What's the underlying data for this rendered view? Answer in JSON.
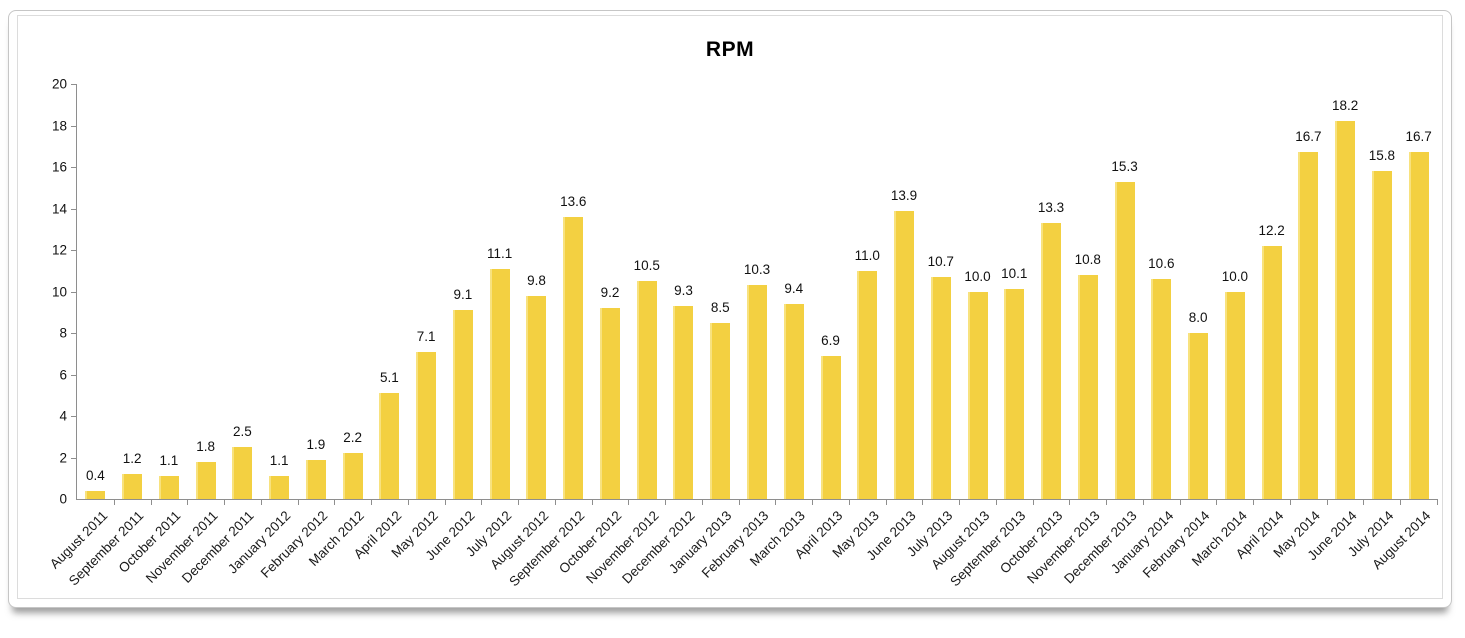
{
  "chart_data": {
    "type": "bar",
    "title": "RPM",
    "categories": [
      "August 2011",
      "September 2011",
      "October 2011",
      "November 2011",
      "December 2011",
      "January 2012",
      "February 2012",
      "March 2012",
      "April 2012",
      "May 2012",
      "June 2012",
      "July 2012",
      "August 2012",
      "September 2012",
      "October 2012",
      "November 2012",
      "December 2012",
      "January 2013",
      "February 2013",
      "March 2013",
      "April 2013",
      "May 2013",
      "June 2013",
      "July 2013",
      "August 2013",
      "September 2013",
      "October 2013",
      "November 2013",
      "December 2013",
      "January 2014",
      "February 2014",
      "March 2014",
      "April 2014",
      "May 2014",
      "June 2014",
      "July 2014",
      "August 2014"
    ],
    "values": [
      0.4,
      1.2,
      1.1,
      1.8,
      2.5,
      1.1,
      1.9,
      2.2,
      5.1,
      7.1,
      9.1,
      11.1,
      9.8,
      13.6,
      9.2,
      10.5,
      9.3,
      8.5,
      10.3,
      9.4,
      6.9,
      11.0,
      13.9,
      10.7,
      10.0,
      10.1,
      13.3,
      10.8,
      15.3,
      10.6,
      8.0,
      10.0,
      12.2,
      16.7,
      18.2,
      15.8,
      16.7
    ],
    "xlabel": "",
    "ylabel": "",
    "ylim": [
      0,
      20
    ],
    "yticks": [
      0,
      2,
      4,
      6,
      8,
      10,
      12,
      14,
      16,
      18,
      20
    ],
    "grid": "off",
    "legend": "none",
    "value_label_decimals": 1,
    "bar_color": "#f3d041",
    "bar_edge_highlight": "#f8e27e",
    "axis_color": "#8e8e8e",
    "text_color": "#111111"
  }
}
